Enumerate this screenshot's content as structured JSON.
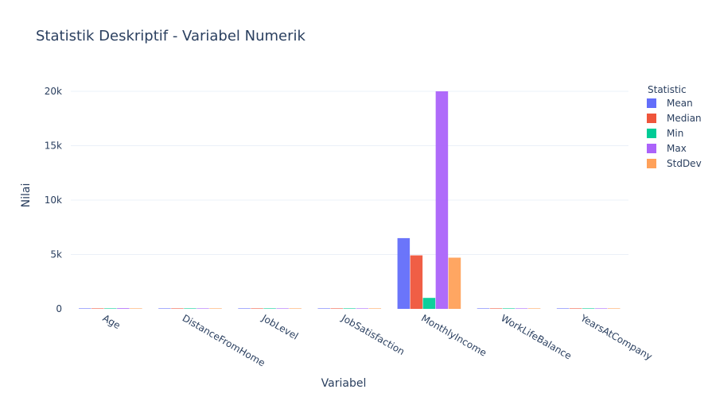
{
  "chart_data": {
    "type": "bar",
    "title": "Statistik Deskriptif - Variabel Numerik",
    "xlabel": "Variabel",
    "ylabel": "Nilai",
    "categories": [
      "Age",
      "DistanceFromHome",
      "JobLevel",
      "JobSatisfaction",
      "MonthlyIncome",
      "WorkLifeBalance",
      "YearsAtCompany"
    ],
    "legend_title": "Statistic",
    "legend_position": "top-right",
    "ylim": [
      0,
      22000
    ],
    "yticks": [
      {
        "value": 0,
        "label": "0"
      },
      {
        "value": 5000,
        "label": "5k"
      },
      {
        "value": 10000,
        "label": "10k"
      },
      {
        "value": 15000,
        "label": "15k"
      },
      {
        "value": 20000,
        "label": "20k"
      }
    ],
    "grid": true,
    "series": [
      {
        "name": "Mean",
        "color": "#636efa",
        "values": [
          36.9,
          9.2,
          2.1,
          2.7,
          6503,
          2.8,
          7.0
        ]
      },
      {
        "name": "Median",
        "color": "#ef553b",
        "values": [
          36,
          7,
          2,
          3,
          4919,
          3,
          5
        ]
      },
      {
        "name": "Min",
        "color": "#00cc96",
        "values": [
          18,
          1,
          1,
          1,
          1009,
          1,
          0
        ]
      },
      {
        "name": "Max",
        "color": "#ab63fa",
        "values": [
          60,
          29,
          5,
          4,
          19999,
          4,
          40
        ]
      },
      {
        "name": "StdDev",
        "color": "#ffa15a",
        "values": [
          9.1,
          8.1,
          1.1,
          1.1,
          4708,
          0.7,
          6.1
        ]
      }
    ]
  }
}
